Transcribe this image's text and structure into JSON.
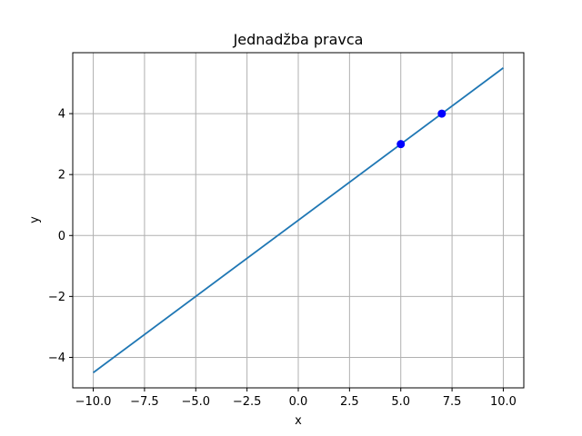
{
  "chart_data": {
    "type": "line",
    "title": "Jednadžba pravca",
    "xlabel": "x",
    "ylabel": "y",
    "xlim": [
      -11,
      11
    ],
    "ylim": [
      -5,
      6
    ],
    "grid": true,
    "legend": "none",
    "xticks": [
      -10.0,
      -7.5,
      -5.0,
      -2.5,
      0.0,
      2.5,
      5.0,
      7.5,
      10.0
    ],
    "xtick_labels": [
      "−10.0",
      "−7.5",
      "−5.0",
      "−2.5",
      "0.0",
      "2.5",
      "5.0",
      "7.5",
      "10.0"
    ],
    "yticks": [
      -4,
      -2,
      0,
      2,
      4
    ],
    "ytick_labels": [
      "−4",
      "−2",
      "0",
      "2",
      "4"
    ],
    "series": [
      {
        "x": [
          -10,
          10
        ],
        "y": [
          -4.5,
          5.5
        ],
        "color": "#1f77b4"
      }
    ],
    "points": [
      {
        "x": 5,
        "y": 3,
        "color": "#0000ff"
      },
      {
        "x": 7,
        "y": 4,
        "color": "#0000ff"
      }
    ],
    "colors": {
      "grid": "#b0b0b0",
      "axes": "#000000"
    }
  }
}
